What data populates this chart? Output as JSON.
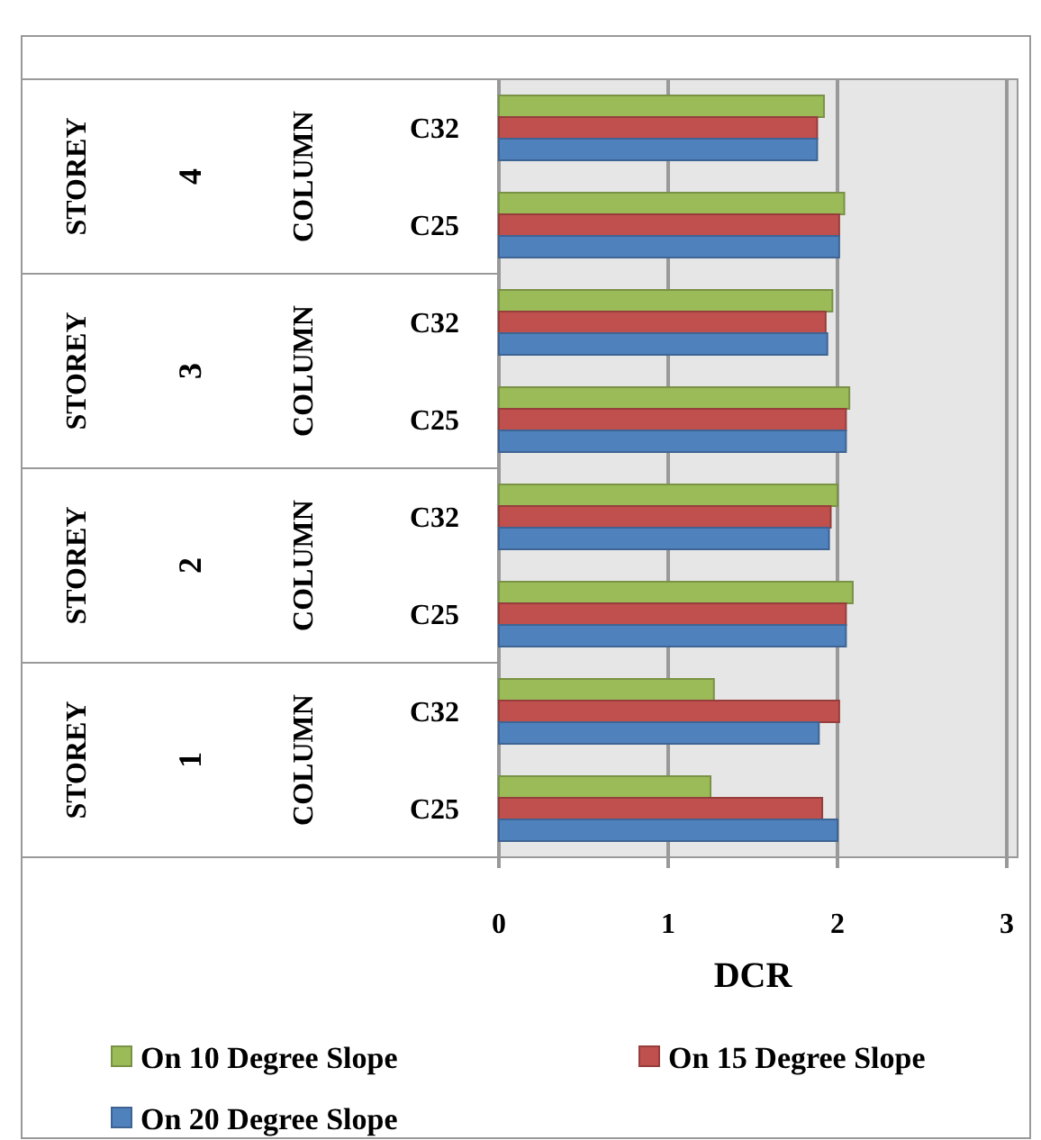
{
  "chart_data": {
    "type": "bar",
    "orientation": "horizontal",
    "xlabel": "DCR",
    "categories": [
      "C32",
      "C25",
      "C32",
      "C25",
      "C32",
      "C25",
      "C32",
      "C25"
    ],
    "annotations": [
      "STOREY",
      "4",
      "COLUMN",
      "STOREY",
      "3",
      "COLUMN",
      "STOREY",
      "2",
      "COLUMN",
      "STOREY",
      "1",
      "COLUMN"
    ],
    "series": [
      {
        "name": "On 10 Degree Slope",
        "color": "#9bbb59",
        "values": [
          1.92,
          2.04,
          1.97,
          2.07,
          2.0,
          2.09,
          1.27,
          1.25
        ]
      },
      {
        "name": "On 15 Degree Slope",
        "color": "#c0504d",
        "values": [
          1.88,
          2.01,
          1.93,
          2.05,
          1.96,
          2.05,
          2.01,
          1.91
        ]
      },
      {
        "name": "On 20 Degree Slope",
        "color": "#4f81bd",
        "values": [
          1.88,
          2.01,
          1.94,
          2.05,
          1.95,
          2.05,
          1.89,
          2.0
        ]
      }
    ],
    "xlim": [
      0,
      3
    ],
    "xticks": [
      0,
      1,
      2,
      3
    ],
    "grid": "x",
    "legend": "bottom"
  }
}
